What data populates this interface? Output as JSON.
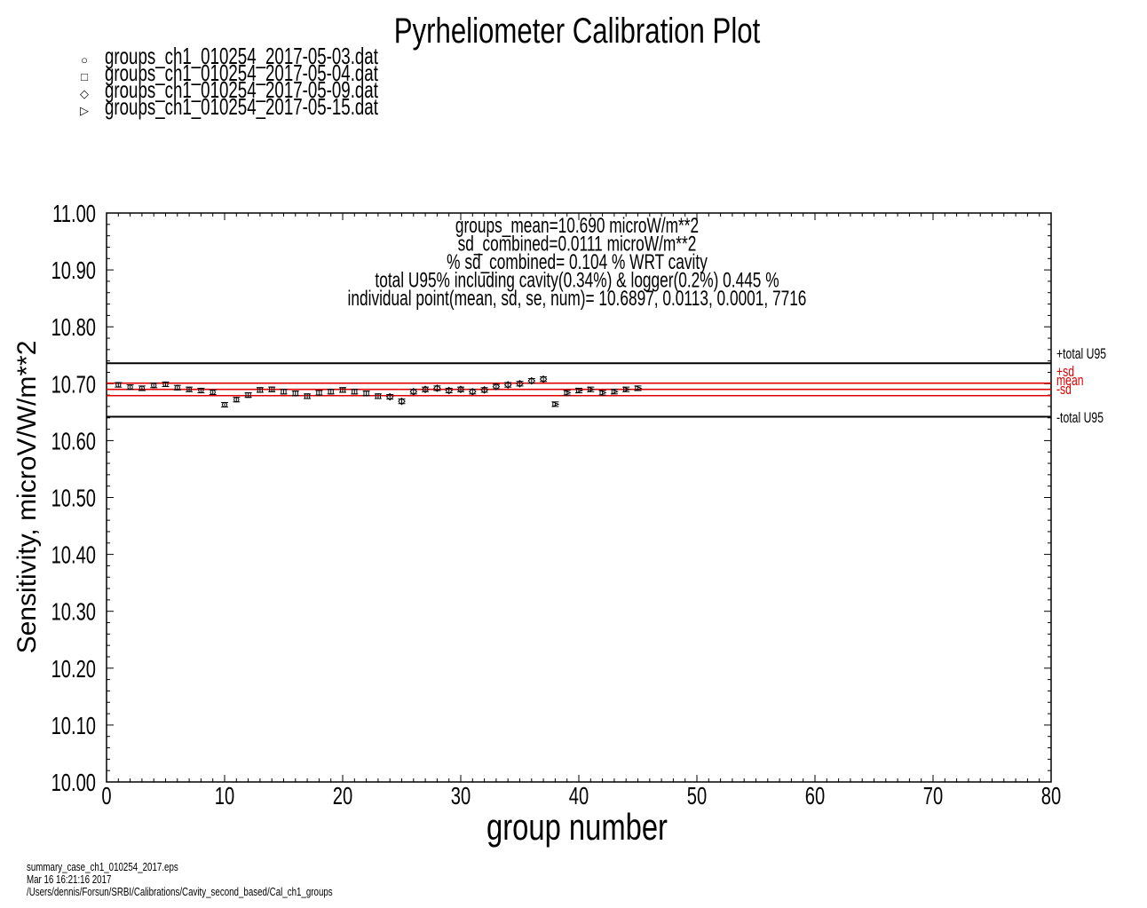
{
  "chart_data": {
    "type": "scatter",
    "title": "Pyrheliometer Calibration Plot",
    "xlabel": "group number",
    "ylabel": "Sensitivity, microV/W/m**2",
    "xlim": [
      0,
      80
    ],
    "ylim": [
      10.0,
      11.0
    ],
    "x_ticks": [
      "0",
      "10",
      "20",
      "30",
      "40",
      "50",
      "60",
      "70",
      "80"
    ],
    "y_ticks": [
      "10.00",
      "10.10",
      "10.20",
      "10.30",
      "10.40",
      "10.50",
      "10.60",
      "10.70",
      "10.80",
      "10.90",
      "11.00"
    ],
    "grid": false,
    "legend_position": "top-left, above plot",
    "legend": [
      {
        "name": "groups_ch1_010254_2017-05-03.dat",
        "marker": "circle",
        "symbol": "○"
      },
      {
        "name": "groups_ch1_010254_2017-05-04.dat",
        "marker": "square",
        "symbol": "□"
      },
      {
        "name": "groups_ch1_010254_2017-05-09.dat",
        "marker": "diamond",
        "symbol": "◇"
      },
      {
        "name": "groups_ch1_010254_2017-05-15.dat",
        "marker": "triangle",
        "symbol": "▷"
      }
    ],
    "annotations": [
      "groups_mean=10.690 microW/m**2",
      "sd_combined=0.0111 microW/m**2",
      "% sd_combined= 0.104 % WRT cavity",
      "total U95% including cavity(0.34%) & logger(0.2%) 0.445 %",
      "individual point(mean, sd, se, num)= 10.6897, 0.0113, 0.0001, 7716"
    ],
    "reference_lines": [
      {
        "label": "+total U95",
        "y": 10.736,
        "color": "#000000"
      },
      {
        "label": "+sd",
        "y": 10.701,
        "color": "#e00000"
      },
      {
        "label": "mean",
        "y": 10.69,
        "color": "#e00000"
      },
      {
        "label": "-sd",
        "y": 10.679,
        "color": "#e00000"
      },
      {
        "label": "-total U95",
        "y": 10.642,
        "color": "#000000"
      }
    ],
    "error_bar": 0.004,
    "series": [
      {
        "name": "groups_ch1_010254_2017-05-03.dat",
        "marker": "circle",
        "x": [
          1,
          2,
          3,
          4,
          5,
          6,
          7,
          8,
          9,
          10,
          11
        ],
        "y": [
          10.698,
          10.694,
          10.692,
          10.697,
          10.699,
          10.693,
          10.69,
          10.688,
          10.685,
          10.663,
          10.672
        ]
      },
      {
        "name": "groups_ch1_010254_2017-05-04.dat",
        "marker": "square",
        "x": [
          12,
          13,
          14,
          15,
          16,
          17,
          18,
          19,
          20,
          21,
          22,
          23
        ],
        "y": [
          10.68,
          10.689,
          10.69,
          10.686,
          10.683,
          10.678,
          10.684,
          10.686,
          10.689,
          10.686,
          10.683,
          10.678
        ]
      },
      {
        "name": "groups_ch1_010254_2017-05-09.dat",
        "marker": "diamond",
        "x": [
          24,
          25,
          26,
          27,
          28,
          29,
          30,
          31,
          32,
          33,
          34,
          35,
          36,
          37
        ],
        "y": [
          10.677,
          10.669,
          10.686,
          10.69,
          10.692,
          10.688,
          10.69,
          10.686,
          10.689,
          10.695,
          10.698,
          10.7,
          10.705,
          10.708
        ]
      },
      {
        "name": "groups_ch1_010254_2017-05-15.dat",
        "marker": "triangle",
        "x": [
          38,
          39,
          40,
          41,
          42,
          43,
          44,
          45
        ],
        "y": [
          10.664,
          10.684,
          10.688,
          10.69,
          10.684,
          10.686,
          10.69,
          10.692
        ]
      }
    ]
  },
  "footer": {
    "line1": "summary_case_ch1_010254_2017.eps",
    "line2": "Mar 16 16:21:16 2017",
    "line3": "/Users/dennis/Forsun/SRBI/Calibrations/Cavity_second_based/Cal_ch1_groups"
  }
}
